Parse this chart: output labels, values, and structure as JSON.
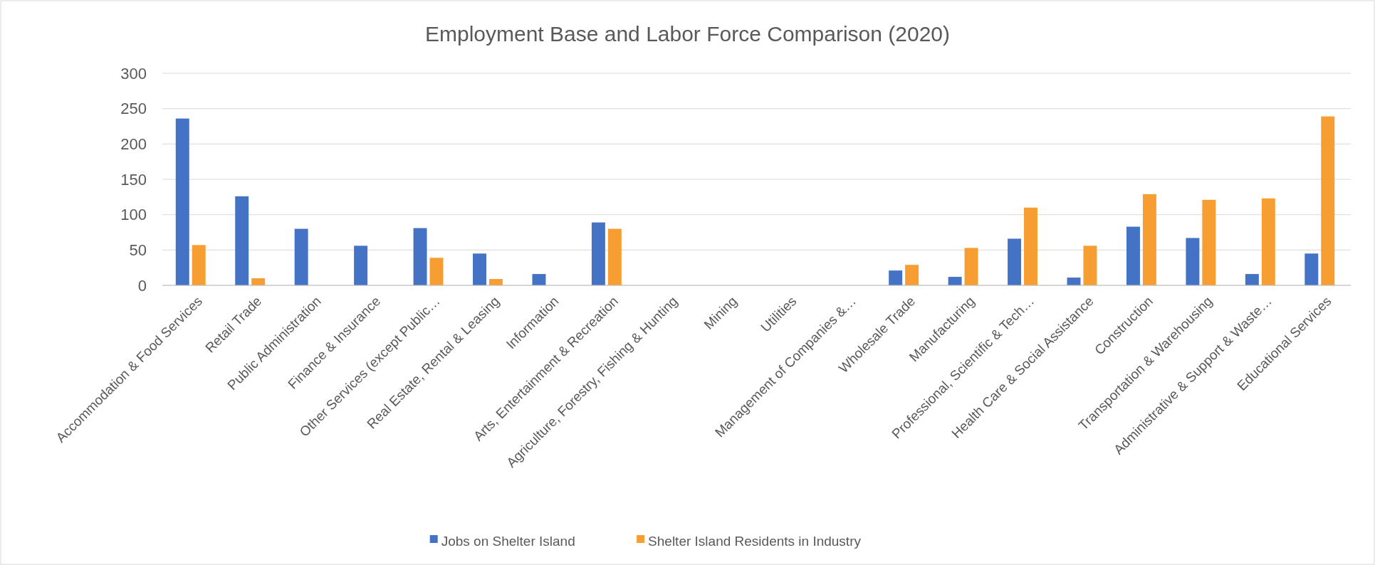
{
  "chart_data": {
    "type": "bar",
    "title": "Employment Base and Labor Force Comparison (2020)",
    "categories": [
      "Accommodation & Food Services",
      "Retail Trade",
      "Public Administration",
      "Finance & Insurance",
      "Other Services (except Public…",
      "Real Estate, Rental & Leasing",
      "Information",
      "Arts, Entertainment & Recreation",
      "Agriculture, Forestry, Fishing & Hunting",
      "Mining",
      "Utilities",
      "Management of Companies &…",
      "Wholesale Trade",
      "Manufacturing",
      "Professional, Scientific & Tech…",
      "Health Care & Social Assistance",
      "Construction",
      "Transportation & Warehousing",
      "Administrative & Support & Waste…",
      "Educational Services"
    ],
    "series": [
      {
        "name": "Jobs on Shelter Island",
        "color": "#4472c4",
        "values": [
          236,
          126,
          80,
          56,
          81,
          45,
          16,
          89,
          0,
          0,
          0,
          0,
          21,
          12,
          66,
          11,
          83,
          67,
          16,
          45
        ]
      },
      {
        "name": "Shelter Island Residents in Industry",
        "color": "#f79e32",
        "values": [
          57,
          10,
          0,
          0,
          39,
          9,
          0,
          80,
          0,
          0,
          0,
          0,
          29,
          53,
          110,
          56,
          129,
          121,
          123,
          239
        ]
      }
    ],
    "ylim": [
      0,
      300
    ],
    "yticks": [
      0,
      50,
      100,
      150,
      200,
      250,
      300
    ],
    "grid": "y",
    "legend": "bottom"
  }
}
